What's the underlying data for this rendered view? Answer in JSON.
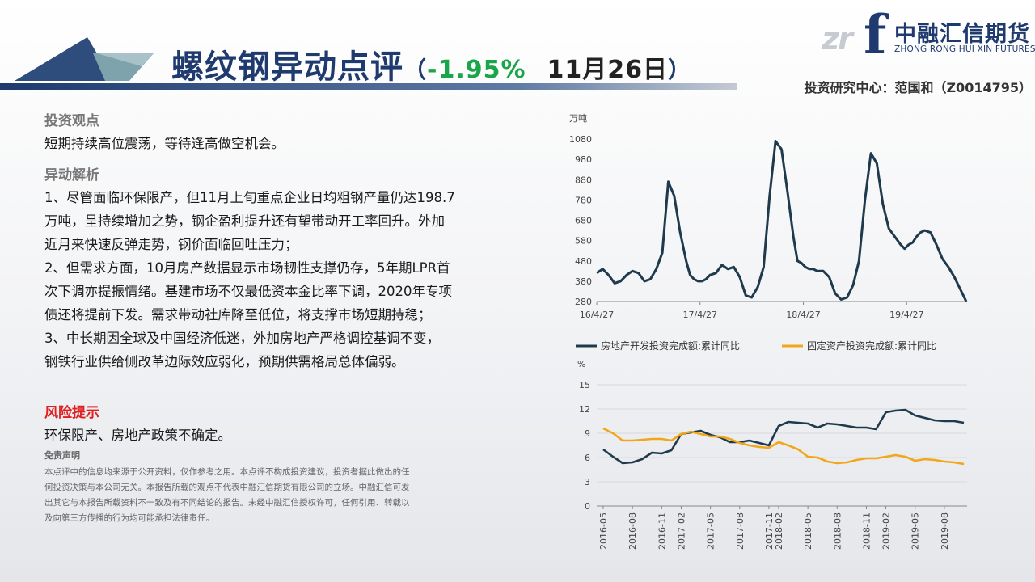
{
  "header": {
    "title_main": "螺纹钢",
    "title_highlight": "异动点评",
    "paren_open": "（",
    "change": "-1.95%",
    "date": "11月26日",
    "paren_close": "）",
    "author": "投资研究中心：范国和（Z0014795）"
  },
  "logo": {
    "watermark": "zr",
    "letter": "f",
    "cn": "中融汇信期货",
    "en": "ZHONG RONG HUI XIN FUTURES"
  },
  "colors": {
    "navy": "#1e3a6e",
    "green_change": "#1aa54a",
    "risk_red": "#e02020",
    "series_dark": "#1f3a4d",
    "series_orange": "#f2a619"
  },
  "content": {
    "view_title": "投资观点",
    "view_text": "短期持续高位震荡，等待逢高做空机会。",
    "analysis_title": "异动解析",
    "analysis_lines": [
      "1、尽管面临环保限产，但11月上旬重点企业日均粗钢产量仍达198.7",
      "万吨，呈持续增加之势，钢企盈利提升还有望带动开工率回升。外加",
      "近月来快速反弹走势，钢价面临回吐压力；",
      "2、但需求方面，10月房产数据显示市场韧性支撑仍存，5年期LPR首",
      "次下调亦提振情绪。基建市场不仅最低资本金比率下调，2020年专项",
      "债还将提前下发。需求带动社库降至低位，将支撑市场短期持稳；",
      "3、中长期因全球及中国经济低迷，外加房地产严格调控基调不变，",
      "钢铁行业供给侧改革边际效应弱化，预期供需格局总体偏弱。"
    ],
    "risk_title": "风险提示",
    "risk_text": "环保限产、房地产政策不确定。",
    "disclaimer_title": "免责声明",
    "disclaimer_lines": [
      "本点评中的信息均来源于公开资料，仅作参考之用。本点评不构成投资建议，投资者据此做出的任",
      "何投资决策与本公司无关。本报告所载的观点不代表中融汇信期货有限公司的立场。中融汇信可发",
      "出其它与本报告所载资料不一致及有不同结论的报告。未经中融汇信授权许可，任何引用、转载以",
      "及向第三方传播的行为均可能承担法律责任。"
    ]
  },
  "chart_data": [
    {
      "type": "line",
      "ylabel": "万吨",
      "ylim": [
        280,
        1080
      ],
      "yticks": [
        280,
        380,
        480,
        580,
        680,
        780,
        880,
        980,
        1080
      ],
      "xtick_labels": [
        "16/4/27",
        "17/4/27",
        "18/4/27",
        "19/4/27"
      ],
      "xlim": [
        0,
        186
      ],
      "xtick_positions": [
        0,
        52,
        104,
        156
      ],
      "grid": false,
      "series": [
        {
          "x": [
            0,
            3,
            6,
            9,
            12,
            15,
            18,
            21,
            24,
            27,
            30,
            33,
            36,
            39,
            42,
            45,
            47,
            49,
            51,
            53,
            55,
            57,
            60,
            63,
            66,
            69,
            72,
            75,
            78,
            81,
            84,
            87,
            90,
            93,
            96,
            99,
            101,
            103,
            105,
            107,
            109,
            111,
            114,
            117,
            120,
            123,
            126,
            129,
            132,
            135,
            138,
            141,
            144,
            147,
            150,
            153,
            155,
            157,
            159,
            161,
            163,
            165,
            168,
            171,
            174,
            177,
            180,
            183,
            186
          ],
          "values": [
            420,
            440,
            410,
            370,
            380,
            410,
            430,
            420,
            380,
            390,
            440,
            520,
            870,
            800,
            620,
            480,
            410,
            390,
            380,
            380,
            390,
            410,
            420,
            460,
            440,
            450,
            400,
            310,
            300,
            350,
            450,
            800,
            1070,
            1030,
            820,
            600,
            480,
            470,
            450,
            440,
            440,
            430,
            430,
            400,
            320,
            290,
            300,
            360,
            480,
            780,
            1010,
            960,
            760,
            640,
            600,
            560,
            540,
            560,
            570,
            600,
            620,
            630,
            620,
            560,
            490,
            450,
            400,
            340,
            280
          ]
        }
      ]
    },
    {
      "type": "line",
      "ylabel": "%",
      "ylim": [
        0,
        15
      ],
      "yticks": [
        0,
        3,
        6,
        9,
        12,
        15
      ],
      "x": [
        "2016-05",
        "2016-06",
        "2016-07",
        "2016-08",
        "2016-09",
        "2016-10",
        "2016-11",
        "2016-12",
        "2017-02",
        "2017-03",
        "2017-04",
        "2017-05",
        "2017-06",
        "2017-07",
        "2017-08",
        "2017-09",
        "2017-10",
        "2017-11",
        "2018-02",
        "2018-03",
        "2018-04",
        "2018-05",
        "2018-06",
        "2018-07",
        "2018-08",
        "2018-09",
        "2018-10",
        "2018-11",
        "2018-12",
        "2019-02",
        "2019-03",
        "2019-04",
        "2019-05",
        "2019-06",
        "2019-07",
        "2019-08",
        "2019-09",
        "2019-10"
      ],
      "xtick_labels": [
        "2016-05",
        "2016-08",
        "2016-11",
        "2017-02",
        "2017-05",
        "2017-08",
        "2017-11",
        "2018-02",
        "2018-05",
        "2018-08",
        "2018-11",
        "2019-02",
        "2019-05",
        "2019-08"
      ],
      "legend_position": "top",
      "grid": true,
      "series": [
        {
          "name": "房地产开发投资完成额:累计同比",
          "values": [
            7.0,
            6.1,
            5.3,
            5.4,
            5.8,
            6.6,
            6.5,
            6.9,
            8.9,
            9.1,
            9.3,
            8.8,
            8.5,
            7.9,
            7.9,
            8.1,
            7.8,
            7.5,
            9.9,
            10.4,
            10.3,
            10.2,
            9.7,
            10.2,
            10.1,
            9.9,
            9.7,
            9.7,
            9.5,
            11.6,
            11.8,
            11.9,
            11.2,
            10.9,
            10.6,
            10.5,
            10.5,
            10.3
          ]
        },
        {
          "name": "固定资产投资完成额:累计同比",
          "values": [
            9.6,
            9.0,
            8.1,
            8.1,
            8.2,
            8.3,
            8.3,
            8.1,
            8.9,
            9.2,
            8.9,
            8.6,
            8.6,
            8.3,
            7.8,
            7.5,
            7.3,
            7.2,
            7.9,
            7.5,
            7.0,
            6.1,
            6.0,
            5.5,
            5.3,
            5.4,
            5.7,
            5.9,
            5.9,
            6.1,
            6.3,
            6.1,
            5.6,
            5.8,
            5.7,
            5.5,
            5.4,
            5.2
          ]
        }
      ]
    }
  ]
}
